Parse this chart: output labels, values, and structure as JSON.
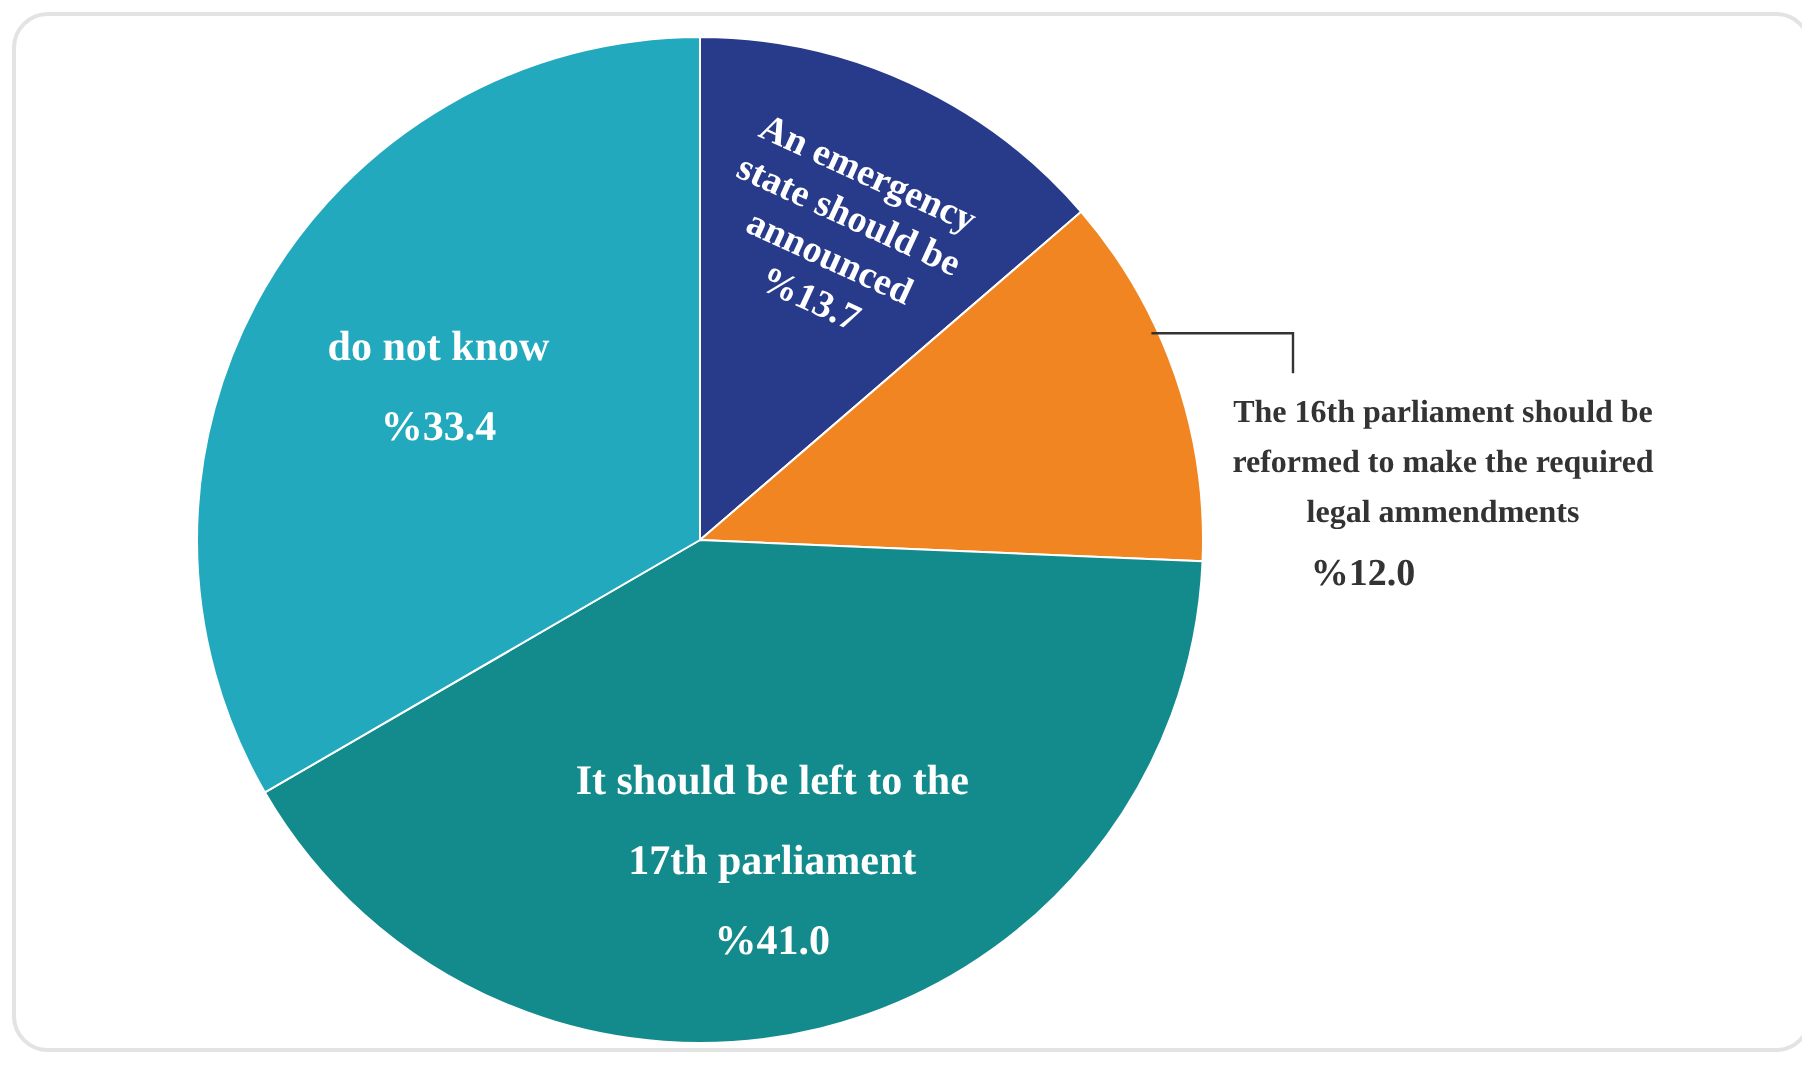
{
  "chart_data": {
    "type": "pie",
    "categories": [
      "An emergency state should be announced",
      "The 16th parliament should be reformed to make the required legal ammendments",
      "It should be left to the 17th parliament",
      "do not know"
    ],
    "values": [
      13.7,
      12.0,
      41.0,
      33.4
    ],
    "colors": [
      "#283a8a",
      "#f08521",
      "#138a8c",
      "#22a9bd"
    ],
    "value_labels": [
      "%13.7",
      "%12.0",
      "%41.0",
      "%33.4"
    ]
  }
}
